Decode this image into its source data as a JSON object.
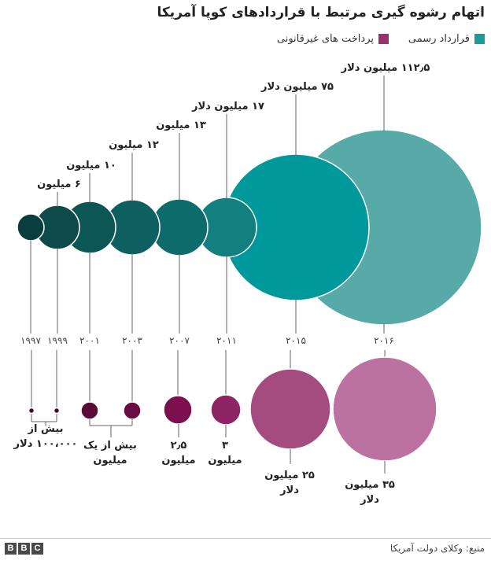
{
  "title": "اتهام رشوه گیری مرتبط با قراردادهای کوپا آمریکا",
  "legend": [
    {
      "label": "قرارداد رسمی",
      "color": "#1f9a9a"
    },
    {
      "label": "پرداخت های غیرقانونی",
      "color": "#9c2f6e"
    }
  ],
  "source": "منبع: وکلای دولت آمریکا",
  "logo": [
    "B",
    "B",
    "C"
  ],
  "chart_data": {
    "type": "bubble",
    "unit": "میلیون دلار",
    "official_contracts": [
      {
        "year": "۱۹۹۷",
        "value": null,
        "label": "",
        "color": "#0a3d3d"
      },
      {
        "year": "۱۹۹۹",
        "value": 6,
        "label": "۶ میلیون",
        "color": "#0f4a4a"
      },
      {
        "year": "۲۰۰۱",
        "value": 10,
        "label": "۱۰ میلیون",
        "color": "#0d5656"
      },
      {
        "year": "۲۰۰۳",
        "value": 12,
        "label": "۱۲ میلیون",
        "color": "#0e6060"
      },
      {
        "year": "۲۰۰۷",
        "value": 13,
        "label": "۱۳ میلیون",
        "color": "#0e6b6b"
      },
      {
        "year": "۲۰۱۱",
        "value": 17,
        "label": "۱۷ میلیون دلار",
        "color": "#13807f"
      },
      {
        "year": "۲۰۱۵",
        "value": 75,
        "label": "۷۵ میلیون دلار",
        "color": "#00999b"
      },
      {
        "year": "۲۰۱۶",
        "value": 112.5,
        "label": "۱۱۲٫۵ میلیون دلار",
        "color": "#58aaa9"
      }
    ],
    "illegal_payments": [
      {
        "year": "۱۹۹۷",
        "value": 0.1,
        "color": "#4a0a2c"
      },
      {
        "year": "۱۹۹۹",
        "value": 0.1,
        "color": "#4a0a2c"
      },
      {
        "year": "۲۰۰۱",
        "value": 1,
        "color": "#5a0b37"
      },
      {
        "year": "۲۰۰۳",
        "value": 1,
        "color": "#6a0c42"
      },
      {
        "year": "۲۰۰۷",
        "value": 2.5,
        "color": "#7c0f4e"
      },
      {
        "year": "۲۰۱۱",
        "value": 3,
        "color": "#8e2464"
      },
      {
        "year": "۲۰۱۵",
        "value": 25,
        "color": "#a44b80"
      },
      {
        "year": "۲۰۱۶",
        "value": 35,
        "color": "#bb72a0"
      }
    ],
    "payment_labels": [
      {
        "text": [
          "بیش از",
          "۱۰۰،۰۰۰ دلار"
        ]
      },
      {
        "text": [
          "بیش از یک",
          "میلیون"
        ]
      },
      {
        "text": [
          "۲٫۵",
          "میلیون"
        ]
      },
      {
        "text": [
          "۳",
          "میلیون"
        ]
      },
      {
        "text": [
          "۲۵ میلیون",
          "دلار"
        ]
      },
      {
        "text": [
          "۳۵ میلیون",
          "دلار"
        ]
      }
    ]
  }
}
